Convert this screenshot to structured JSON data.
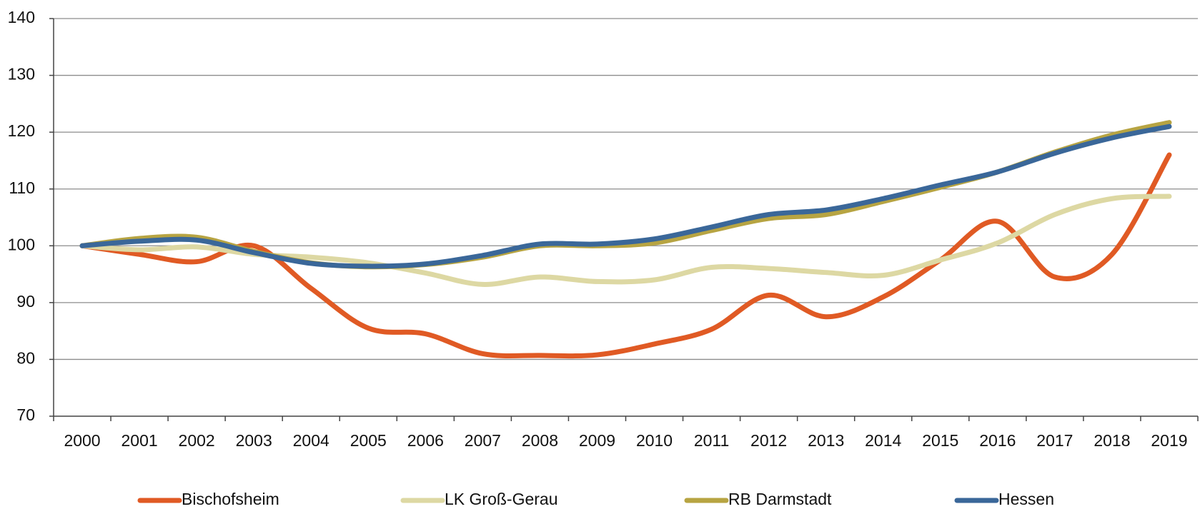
{
  "chart_data": {
    "type": "line",
    "categories": [
      "2000",
      "2001",
      "2002",
      "2003",
      "2004",
      "2005",
      "2006",
      "2007",
      "2008",
      "2009",
      "2010",
      "2011",
      "2012",
      "2013",
      "2014",
      "2015",
      "2016",
      "2017",
      "2018",
      "2019"
    ],
    "series": [
      {
        "name": "Bischofsheim",
        "color": "#e05a24",
        "values": [
          100,
          98.5,
          97.2,
          100,
          92.5,
          85.5,
          84.5,
          81,
          80.7,
          80.8,
          82.7,
          85.3,
          91.3,
          87.5,
          91,
          97.5,
          104.3,
          94.5,
          98.5,
          116
        ]
      },
      {
        "name": "LK Groß-Gerau",
        "color": "#ddd8a3",
        "values": [
          100,
          99.3,
          99.8,
          98.5,
          98,
          97,
          95.2,
          93.2,
          94.5,
          93.7,
          94,
          96.2,
          96,
          95.3,
          94.8,
          97.5,
          100.5,
          105.5,
          108.3,
          108.7
        ]
      },
      {
        "name": "RB Darmstadt",
        "color": "#b7a442",
        "values": [
          100,
          101.3,
          101.5,
          99,
          97,
          96.3,
          96.7,
          98,
          100,
          100,
          100.5,
          102.7,
          104.8,
          105.5,
          107.8,
          110.3,
          113,
          116.5,
          119.5,
          121.7
        ]
      },
      {
        "name": "Hessen",
        "color": "#3a6799",
        "values": [
          100,
          100.8,
          101,
          98.8,
          96.9,
          96.4,
          96.8,
          98.3,
          100.3,
          100.3,
          101.2,
          103.3,
          105.5,
          106.3,
          108.3,
          110.7,
          113,
          116.3,
          119,
          121
        ]
      }
    ],
    "ylim": [
      70,
      140
    ],
    "yticks": [
      70,
      80,
      90,
      100,
      110,
      120,
      130,
      140
    ],
    "grid": true,
    "legend": "bottom"
  }
}
